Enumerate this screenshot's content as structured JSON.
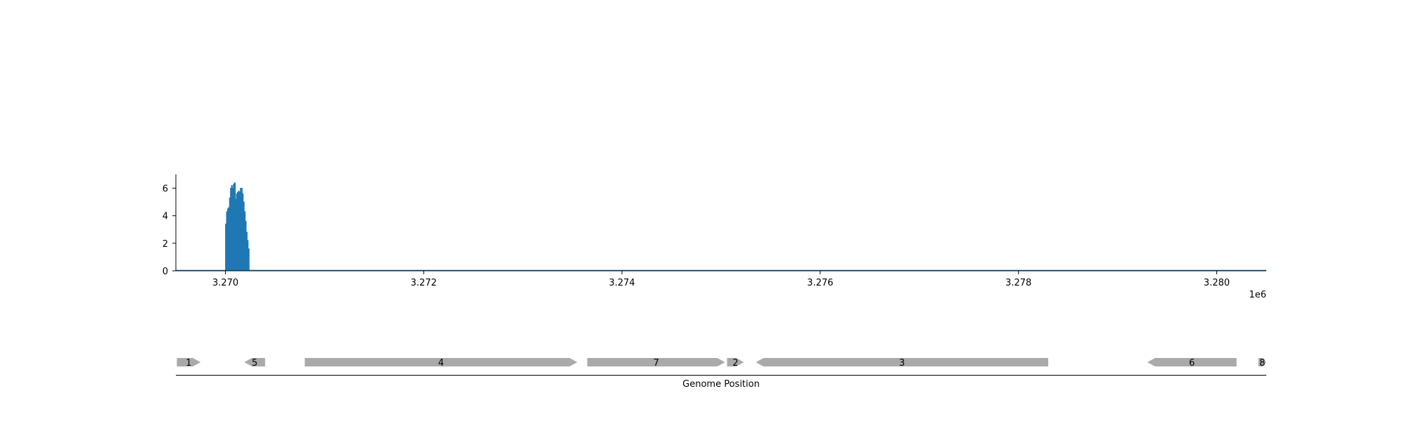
{
  "chart_data": {
    "type": "area",
    "coverage": {
      "color": "#1f77b4",
      "x": [
        3269500,
        3270000,
        3270010,
        3270020,
        3270030,
        3270040,
        3270050,
        3270060,
        3270070,
        3270080,
        3270090,
        3270100,
        3270110,
        3270120,
        3270130,
        3270140,
        3270150,
        3270160,
        3270170,
        3270180,
        3270190,
        3270200,
        3270210,
        3270220,
        3270230,
        3270240,
        3270250,
        3270260,
        3270270,
        3280500
      ],
      "y": [
        0,
        3.4,
        4.3,
        4.5,
        4.6,
        5.3,
        6.0,
        6.2,
        6.0,
        6.3,
        6.4,
        5.2,
        5.6,
        5.7,
        5.8,
        5.7,
        6.0,
        6.0,
        5.6,
        5.0,
        4.3,
        3.6,
        2.8,
        2.2,
        1.6,
        0,
        0,
        0,
        0,
        0
      ]
    },
    "x_axis": {
      "xlim": [
        3269500,
        3280500
      ],
      "ticks": [
        3270000,
        3272000,
        3274000,
        3276000,
        3278000,
        3280000
      ],
      "tick_labels": [
        "3.270",
        "3.272",
        "3.274",
        "3.276",
        "3.278",
        "3.280"
      ],
      "offset_label": "1e6"
    },
    "y_axis": {
      "ylim": [
        0,
        7
      ],
      "ticks": [
        0,
        2,
        4,
        6
      ],
      "tick_labels": [
        "0",
        "2",
        "4",
        "6"
      ]
    },
    "grid": false,
    "genes": {
      "color": "#aaaaaa",
      "xlabel": "Genome Position",
      "items": [
        {
          "label": "1",
          "start": 3269510,
          "end": 3269750,
          "strand": "+"
        },
        {
          "label": "5",
          "start": 3270190,
          "end": 3270400,
          "strand": "-"
        },
        {
          "label": "4",
          "start": 3270800,
          "end": 3273550,
          "strand": "+"
        },
        {
          "label": "7",
          "start": 3273650,
          "end": 3275040,
          "strand": "+"
        },
        {
          "label": "2",
          "start": 3275060,
          "end": 3275230,
          "strand": "+"
        },
        {
          "label": "3",
          "start": 3275350,
          "end": 3278300,
          "strand": "-"
        },
        {
          "label": "6",
          "start": 3279300,
          "end": 3280200,
          "strand": "-"
        },
        {
          "label": "8",
          "start": 3280420,
          "end": 3280500,
          "strand": "+"
        }
      ]
    }
  }
}
